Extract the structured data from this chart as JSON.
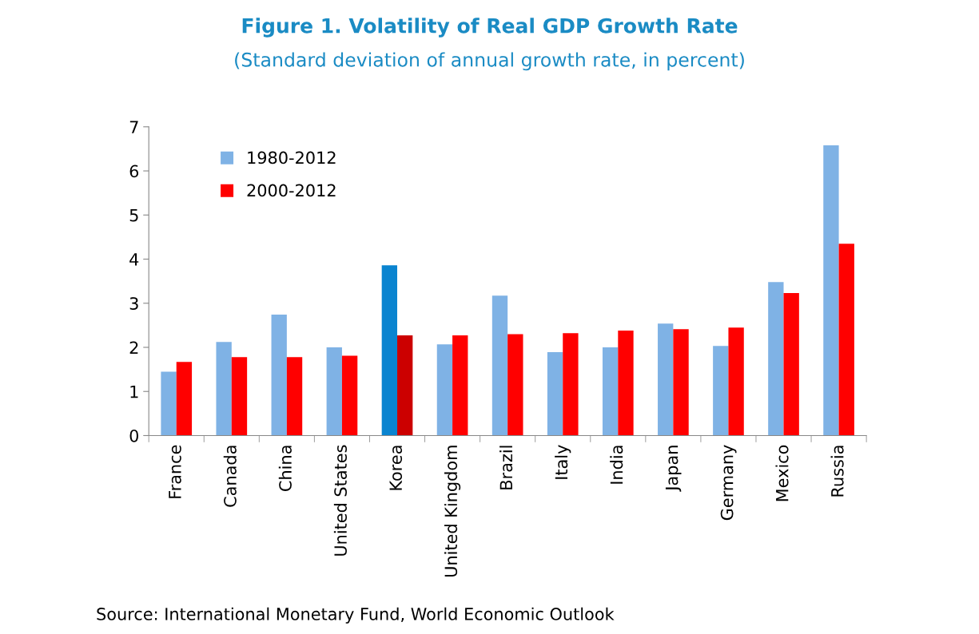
{
  "chart_data": {
    "type": "bar",
    "title": "Figure 1. Volatility of Real GDP Growth Rate",
    "subtitle": "(Standard deviation of annual growth rate, in percent)",
    "categories": [
      "France",
      "Canada",
      "China",
      "United States",
      "Korea",
      "United Kingdom",
      "Brazil",
      "Italy",
      "India",
      "Japan",
      "Germany",
      "Mexico",
      "Russia"
    ],
    "series": [
      {
        "name": "1980-2012",
        "color": "#7fb2e5",
        "colors": [
          "#7fb2e5",
          "#7fb2e5",
          "#7fb2e5",
          "#7fb2e5",
          "#0a84d0",
          "#7fb2e5",
          "#7fb2e5",
          "#7fb2e5",
          "#7fb2e5",
          "#7fb2e5",
          "#7fb2e5",
          "#7fb2e5",
          "#7fb2e5"
        ],
        "values": [
          1.45,
          2.12,
          2.74,
          2.0,
          3.86,
          2.07,
          3.17,
          1.89,
          2.0,
          2.54,
          2.03,
          3.48,
          6.58
        ]
      },
      {
        "name": "2000-2012",
        "color": "#ff0000",
        "colors": [
          "#ff0000",
          "#ff0000",
          "#ff0000",
          "#ff0000",
          "#cc0000",
          "#ff0000",
          "#ff0000",
          "#ff0000",
          "#ff0000",
          "#ff0000",
          "#ff0000",
          "#ff0000",
          "#ff0000"
        ],
        "values": [
          1.67,
          1.78,
          1.78,
          1.81,
          2.27,
          2.27,
          2.3,
          2.32,
          2.38,
          2.41,
          2.45,
          3.23,
          4.35
        ]
      }
    ],
    "ylim": [
      0,
      7
    ],
    "yticks": [
      0,
      1,
      2,
      3,
      4,
      5,
      6,
      7
    ],
    "grid": false,
    "legend": "top left",
    "annotations": [
      "Source: International Monetary Fund, World Economic Outlook"
    ]
  }
}
